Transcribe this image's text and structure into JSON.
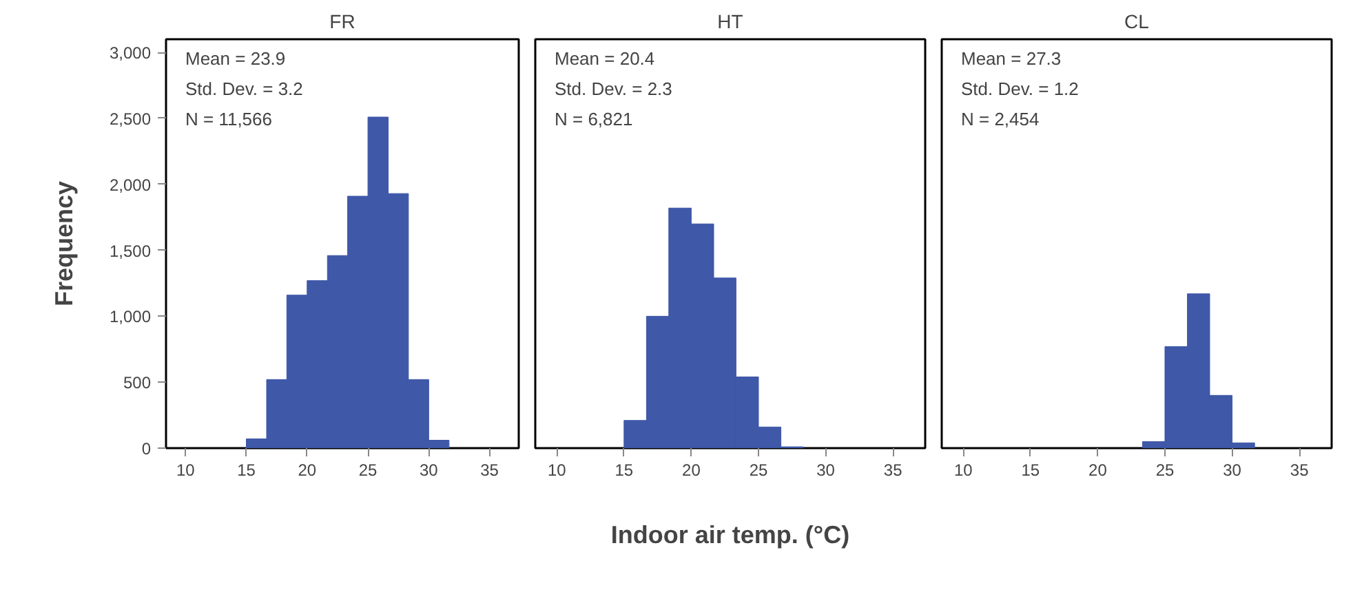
{
  "chart_data": [
    {
      "type": "histogram",
      "title": "FR",
      "ylabel": "Frequency",
      "color": "#3f58a8",
      "grid": false,
      "bins": [
        15,
        16.67,
        18.33,
        20,
        21.67,
        23.33,
        25,
        26.67,
        28.33,
        30,
        31.67
      ],
      "values": [
        70,
        520,
        1160,
        1270,
        1460,
        1910,
        2510,
        1930,
        520,
        60
      ],
      "xlim": [
        8.4,
        37.4
      ],
      "xticks": [
        10,
        15,
        20,
        25,
        30,
        35
      ],
      "ylim": [
        0,
        3100
      ],
      "yticks": [
        0,
        500,
        {
          "value": 1000,
          "label": "1,000"
        },
        {
          "value": 1500,
          "label": "1,500"
        },
        {
          "value": 2000,
          "label": "2,000"
        },
        {
          "value": 2500,
          "label": "2,500"
        },
        {
          "value": 3000,
          "label": "3,000"
        }
      ],
      "annotations": [
        "Mean = 23.9",
        "Std. Dev. = 3.2",
        "N = 11,566"
      ]
    },
    {
      "type": "histogram",
      "title": "HT",
      "xlabel": "Indoor air temp. (°C)",
      "color": "#3f58a8",
      "grid": false,
      "tick_labels": "x",
      "bins": [
        15,
        16.67,
        18.33,
        20,
        21.67,
        23.33,
        25,
        26.67,
        28.33
      ],
      "values": [
        210,
        1000,
        1820,
        1700,
        1290,
        540,
        160,
        10
      ],
      "xlim": [
        8.4,
        37.4
      ],
      "xticks": [
        10,
        15,
        20,
        25,
        30,
        35
      ],
      "ylim": [
        0,
        3100
      ],
      "annotations": [
        "Mean = 20.4",
        "Std. Dev. = 2.3",
        "N = 6,821"
      ]
    },
    {
      "type": "histogram",
      "title": "CL",
      "color": "#3f58a8",
      "grid": false,
      "tick_labels": "x",
      "bins": [
        23.33,
        25,
        26.67,
        28.33,
        30,
        31.67
      ],
      "values": [
        50,
        770,
        1170,
        400,
        40
      ],
      "xlim": [
        8.4,
        37.4
      ],
      "xticks": [
        10,
        15,
        20,
        25,
        30,
        35
      ],
      "ylim": [
        0,
        3100
      ],
      "annotations": [
        "Mean = 27.3",
        "Std. Dev. = 1.2",
        "N = 2,454"
      ]
    }
  ]
}
